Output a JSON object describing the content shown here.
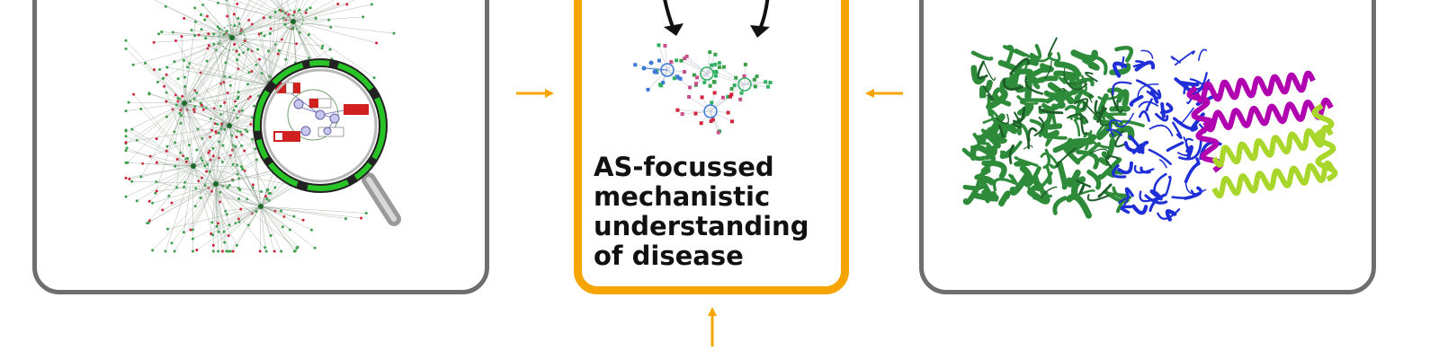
{
  "center_panel": {
    "lines": [
      "AS-focussed",
      "mechanistic",
      "understanding",
      "of disease"
    ]
  },
  "colors": {
    "panel_border": "#6e6e6e",
    "center_border": "#f6a500",
    "arrow_orange": "#f6a500",
    "arrow_black": "#111111",
    "protein_green": "#2e8b3a",
    "protein_blue": "#1f2fd6",
    "protein_magenta": "#b000b0",
    "protein_lime": "#a8d62a",
    "network_green": "#3aa04a",
    "network_red": "#d0243a"
  },
  "icons": [
    "network-hairball-icon",
    "magnifying-glass-icon",
    "subnetwork-icon",
    "protein-structure-icon"
  ]
}
